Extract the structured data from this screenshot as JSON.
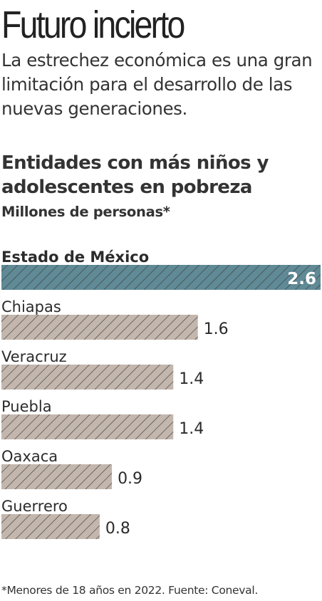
{
  "header": {
    "headline": "Futuro incierto",
    "dek": "La estrechez económica es una gran limitación para el desarrollo de las nuevas generaciones."
  },
  "chart_data": {
    "type": "bar",
    "orientation": "horizontal",
    "title": "Entidades con más niños y adolescentes en pobreza",
    "subtitle": "Millones de personas*",
    "categories": [
      "Estado de México",
      "Chiapas",
      "Veracruz",
      "Puebla",
      "Oaxaca",
      "Guerrero"
    ],
    "values": [
      2.6,
      1.6,
      1.4,
      1.4,
      0.9,
      0.8
    ],
    "value_labels": [
      "2.6",
      "1.6",
      "1.4",
      "1.4",
      "0.9",
      "0.8"
    ],
    "highlight_index": 0,
    "colors": {
      "highlight": "#5f8a96",
      "default": "#c3b6ad",
      "hatch": "#3d3d3d",
      "text": "#2b2b2b",
      "highlight_label": "#ffffff"
    },
    "xlim": [
      0,
      2.6
    ]
  },
  "footer": {
    "note": "*Menores de 18 años en 2022. Fuente: Coneval."
  }
}
